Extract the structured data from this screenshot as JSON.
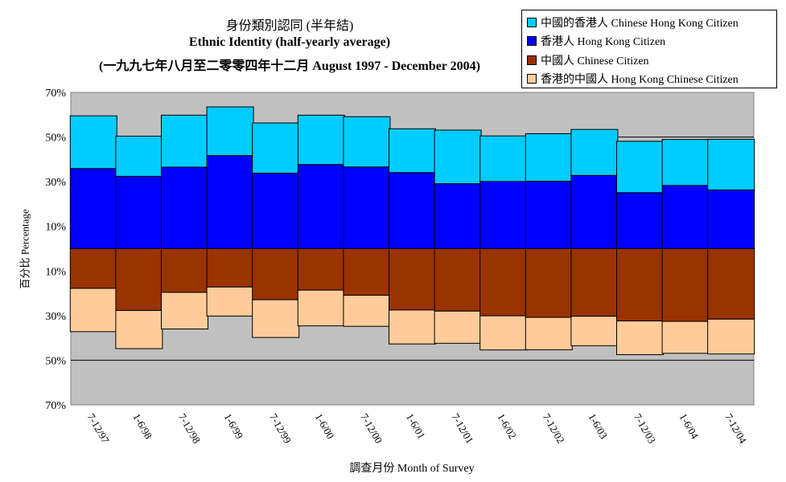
{
  "chart_data": {
    "type": "bar",
    "title_zh": "身份類別認同 (半年結)",
    "title": "Ethnic Identity (half-yearly average)",
    "subtitle": "(一九九七年八月至二零零四年十二月 August 1997 - December 2004)",
    "xlabel": "調查月份 Month of Survey",
    "ylabel": "百分比 Percentage",
    "ylim": [
      -70,
      70
    ],
    "yticks": [
      70,
      50,
      30,
      10,
      -10,
      -30,
      -50,
      -70
    ],
    "ytick_labels": [
      "70%",
      "50%",
      "30%",
      "10%",
      "10%",
      "30%",
      "50%",
      "70%"
    ],
    "grid": true,
    "legend_position": "top-right",
    "categories": [
      "7-12/97",
      "1-6/98",
      "7-12/98",
      "1-6/99",
      "7-12/99",
      "1-6/00",
      "7-12/00",
      "1-6/01",
      "7-12/01",
      "1-6/02",
      "7-12/02",
      "1-6/03",
      "7-12/03",
      "1-6/04",
      "7-12/04"
    ],
    "series": [
      {
        "name": "中國的香港人 Chinese Hong Kong Citizen",
        "color": "#00CCFF",
        "direction": "up",
        "values": [
          23.6,
          18.0,
          23.3,
          21.8,
          22.5,
          22.1,
          22.5,
          19.6,
          24.0,
          20.4,
          21.3,
          20.6,
          23.0,
          20.6,
          22.7
        ]
      },
      {
        "name": "香港人 Hong Kong Citizen",
        "color": "#0000FF",
        "direction": "up",
        "values": [
          35.9,
          32.4,
          36.5,
          41.7,
          33.8,
          37.7,
          36.6,
          34.1,
          29.1,
          30.1,
          30.2,
          32.8,
          25.1,
          28.3,
          26.3
        ]
      },
      {
        "name": "中國人 Chinese Citizen",
        "color": "#993300",
        "direction": "down",
        "values": [
          17.8,
          27.7,
          19.6,
          17.2,
          22.9,
          18.6,
          20.9,
          27.5,
          28.0,
          30.1,
          30.8,
          30.3,
          32.4,
          32.6,
          31.6
        ]
      },
      {
        "name": "香港的中國人 Hong Kong Chinese Citizen",
        "color": "#FFCC99",
        "direction": "down",
        "values": [
          19.4,
          17.1,
          16.4,
          13.0,
          16.9,
          16.0,
          13.9,
          15.2,
          14.4,
          15.3,
          14.5,
          13.2,
          15.1,
          14.3,
          15.6
        ]
      }
    ]
  }
}
